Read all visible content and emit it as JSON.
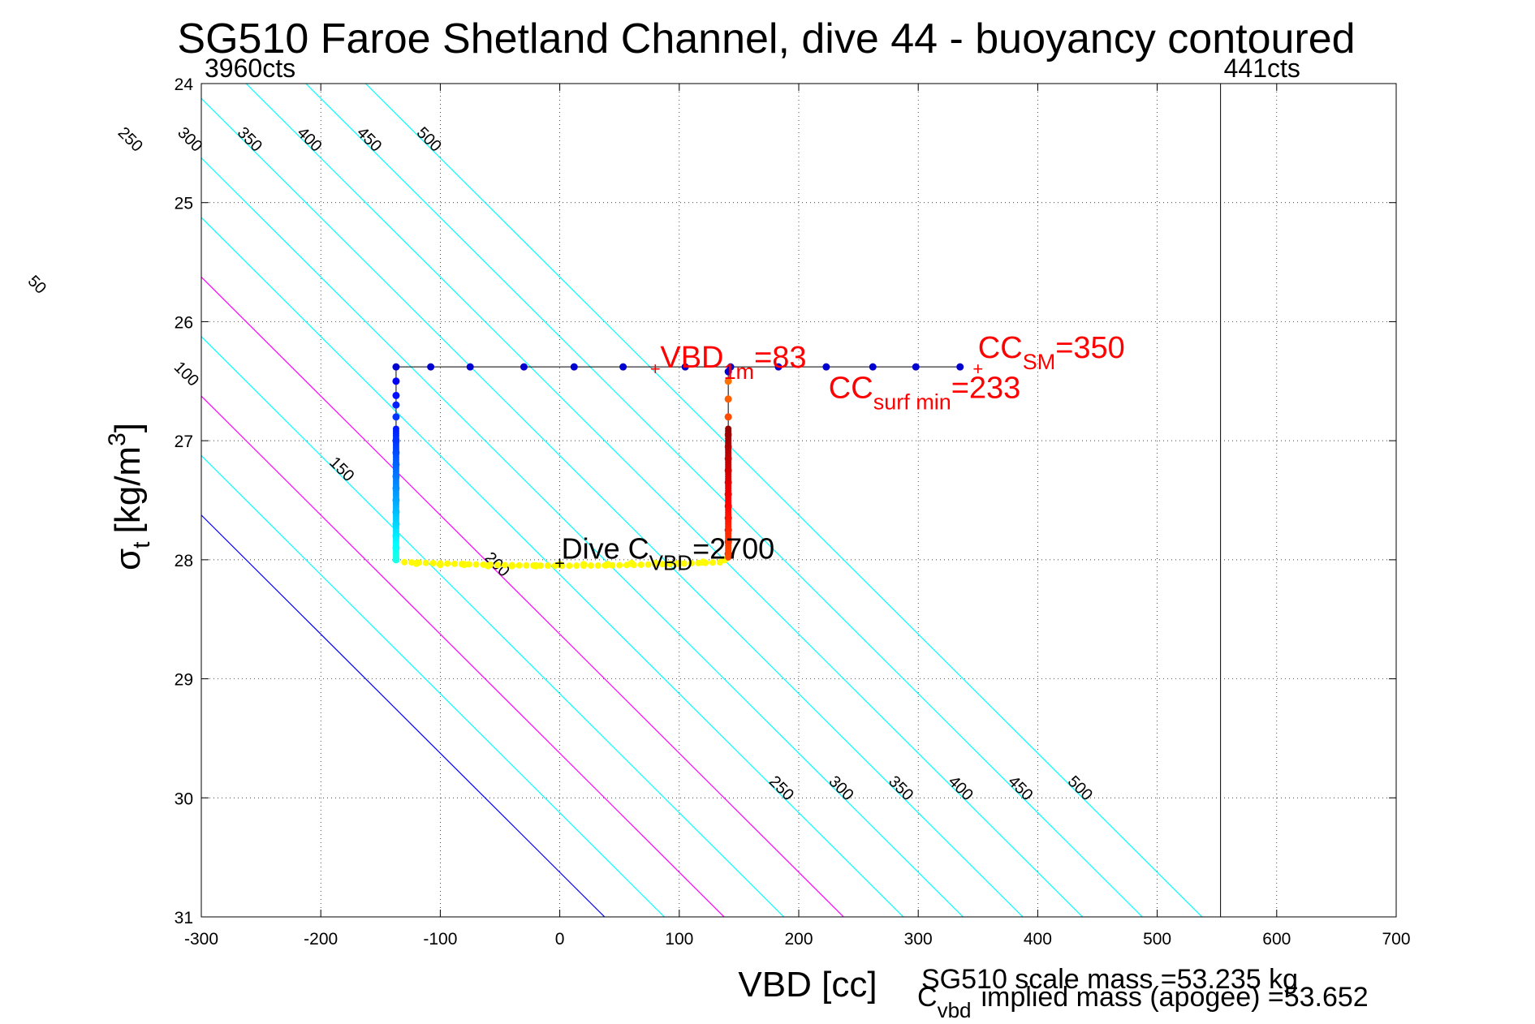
{
  "chart_data": {
    "type": "scatter",
    "title": "SG510 Faroe Shetland Channel, dive 44 - buoyancy contoured",
    "xlabel": "VBD [cc]",
    "ylabel_main": "σ",
    "ylabel_sub": "t",
    "ylabel_rest": "[kg/m",
    "ylabel_sup": "3",
    "ylabel_close": "]",
    "xlim": [
      -300,
      700
    ],
    "ylim": [
      24,
      31
    ],
    "y_reversed": true,
    "grid": true,
    "xticks": [
      -300,
      -200,
      -100,
      0,
      100,
      200,
      300,
      400,
      500,
      600,
      700
    ],
    "yticks": [
      24,
      25,
      26,
      27,
      28,
      29,
      30,
      31
    ],
    "ytick_labels": [
      "24",
      "25",
      "26",
      "27",
      "28",
      "29",
      "30",
      "31"
    ],
    "contours": {
      "density_intercept": 30.625,
      "levels": [
        0,
        50,
        100,
        150,
        200,
        250,
        300,
        350,
        400,
        450,
        500
      ],
      "upper_label_levels": [
        250,
        300,
        350,
        400,
        450,
        500
      ],
      "lower_label_levels": [
        250,
        300,
        350,
        400,
        450,
        500
      ],
      "left_label_levels": [
        0,
        50,
        100,
        150,
        200
      ],
      "colors": {
        "0": "#0000ff",
        "100": "#ff00ff",
        "200": "#ff00ff",
        "default": "#00ffff"
      }
    },
    "vertical_lines": [
      {
        "x": 553,
        "label": "441cts",
        "color": "#000000"
      },
      {
        "x": -300,
        "label": "3960cts",
        "color": "#000000"
      }
    ],
    "series": [
      {
        "points": [
          [
            -137,
            26.38
          ],
          [
            -108,
            26.38
          ],
          [
            -75,
            26.38
          ],
          [
            -30,
            26.38
          ],
          [
            12,
            26.38
          ],
          [
            53,
            26.38
          ],
          [
            105,
            26.38
          ],
          [
            143,
            26.38
          ],
          [
            183,
            26.38
          ],
          [
            223,
            26.38
          ],
          [
            262,
            26.38
          ],
          [
            298,
            26.38
          ],
          [
            335,
            26.38
          ],
          [
            -137,
            26.5
          ],
          [
            -137,
            26.62
          ],
          [
            -137,
            26.7
          ],
          [
            -137,
            26.8
          ],
          [
            -137,
            27.0
          ],
          [
            -137,
            27.1
          ],
          [
            -137,
            27.2
          ],
          [
            -137,
            27.3
          ],
          [
            -137,
            27.4
          ],
          [
            -137,
            27.5
          ],
          [
            -137,
            27.6
          ],
          [
            -137,
            27.7
          ],
          [
            -137,
            27.8
          ],
          [
            -137,
            27.9
          ],
          [
            -137,
            28.0
          ],
          [
            -120,
            28.03
          ],
          [
            -100,
            28.04
          ],
          [
            -80,
            28.04
          ],
          [
            -60,
            28.05
          ],
          [
            -40,
            28.05
          ],
          [
            -20,
            28.05
          ],
          [
            0,
            28.04
          ],
          [
            20,
            28.04
          ],
          [
            40,
            28.04
          ],
          [
            60,
            28.03
          ],
          [
            80,
            28.03
          ],
          [
            100,
            28.03
          ],
          [
            120,
            28.02
          ],
          [
            138,
            28.0
          ],
          [
            141,
            27.95
          ],
          [
            141,
            27.85
          ],
          [
            141,
            27.75
          ],
          [
            141,
            27.65
          ],
          [
            141,
            27.55
          ],
          [
            141,
            27.45
          ],
          [
            141,
            27.35
          ],
          [
            141,
            27.25
          ],
          [
            141,
            27.15
          ],
          [
            141,
            27.05
          ],
          [
            141,
            26.95
          ],
          [
            141,
            26.8
          ],
          [
            141,
            26.65
          ],
          [
            141,
            26.5
          ],
          [
            141,
            26.42
          ]
        ]
      }
    ],
    "annotations": [
      {
        "x": 80,
        "y": 26.4,
        "marker": "+",
        "color": "#ff0000",
        "base": "VBD",
        "sub": "1m",
        "rest": "=83"
      },
      {
        "x": 350,
        "y": 26.4,
        "marker": "+",
        "color": "#ff0000",
        "base": "CC",
        "sub": "SM",
        "rest": "=350"
      },
      {
        "x": 225,
        "y": 26.45,
        "marker": "",
        "color": "#ff0000",
        "base": "CC",
        "sub": "surf min",
        "rest": "=233"
      },
      {
        "x": 0,
        "y": 28.03,
        "marker": "+",
        "color": "#000000",
        "base": "Dive C",
        "sub": "VBD",
        "rest": "=2700"
      }
    ]
  },
  "footnotes": {
    "scale_mass": "SG510 scale mass =53.235 kg",
    "implied_base": "C",
    "implied_sub": "vbd",
    "implied_rest": "implied mass (apogee) =53.652"
  }
}
